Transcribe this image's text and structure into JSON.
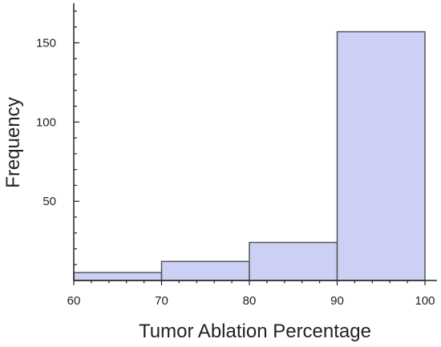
{
  "chart_data": {
    "type": "bar",
    "subtype": "histogram",
    "title": "",
    "xlabel": "Tumor Ablation Percentage",
    "ylabel": "Frequency",
    "bins": [
      {
        "start": 60,
        "end": 70,
        "value": 5
      },
      {
        "start": 70,
        "end": 80,
        "value": 12
      },
      {
        "start": 80,
        "end": 90,
        "value": 24
      },
      {
        "start": 90,
        "end": 100,
        "value": 157
      }
    ],
    "xlim": [
      60,
      100
    ],
    "ylim": [
      0,
      175
    ],
    "x_ticks": [
      60,
      70,
      80,
      90,
      100
    ],
    "y_ticks": [
      50,
      100,
      150
    ],
    "grid": false,
    "legend": "none",
    "colors": {
      "bar_fill": "#ccd0f5",
      "bar_stroke": "#555555",
      "axis": "#222222"
    }
  }
}
